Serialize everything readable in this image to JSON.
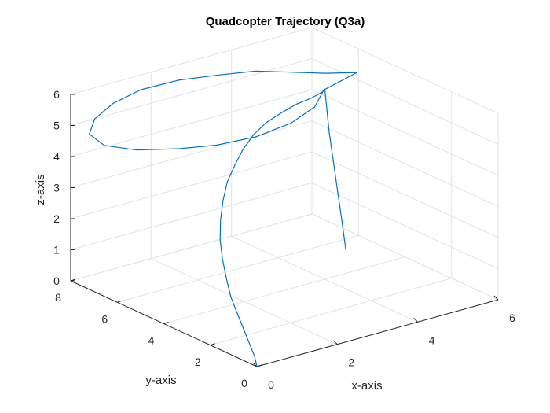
{
  "chart_data": {
    "type": "line",
    "projection": "3d",
    "title": "Quadcopter Trajectory (Q3a)",
    "xlabel": "x-axis",
    "ylabel": "y-axis",
    "zlabel": "z-axis",
    "xlim": [
      0,
      6
    ],
    "ylim": [
      0,
      8
    ],
    "zlim": [
      0,
      6
    ],
    "xticks": [
      0,
      2,
      4,
      6
    ],
    "yticks": [
      0,
      2,
      4,
      6,
      8
    ],
    "zticks": [
      0,
      1,
      2,
      3,
      4,
      5,
      6
    ],
    "grid": true,
    "box": false,
    "line_color": "#0072bd",
    "series": [
      {
        "segments": [
          {
            "part": "climb",
            "x": [
              0,
              0,
              0,
              0.03,
              0.1,
              0.22,
              0.4,
              0.62,
              0.88,
              1.18,
              1.5,
              1.84,
              2.2,
              2.55,
              2.9,
              3.25,
              3.58,
              3.9,
              4.2,
              4.5
            ],
            "y": [
              0,
              0.1,
              0.3,
              0.6,
              1.0,
              1.5,
              2.0,
              2.55,
              3.1,
              3.6,
              4.05,
              4.45,
              4.75,
              5.0,
              5.15,
              5.2,
              5.15,
              5.05,
              4.9,
              4.85
            ],
            "z": [
              0,
              0.3,
              0.6,
              0.95,
              1.3,
              1.65,
              2.0,
              2.35,
              2.7,
              3.05,
              3.4,
              3.75,
              4.05,
              4.35,
              4.65,
              4.9,
              5.1,
              5.3,
              5.45,
              5.6
            ]
          },
          {
            "part": "circle",
            "x": [
              4.5,
              5.5,
              5.3,
              5.0,
              4.6,
              4.0,
              3.2,
              2.3,
              1.4,
              0.6,
              0.0,
              -0.15,
              0.2,
              0.9,
              1.6,
              2.5,
              3.4,
              4.1,
              4.5
            ],
            "y": [
              4.9,
              5.2,
              6.2,
              7.2,
              8.0,
              8.55,
              8.9,
              8.95,
              8.6,
              8.0,
              7.2,
              6.3,
              5.5,
              4.9,
              4.5,
              4.35,
              4.4,
              4.6,
              4.9
            ],
            "z": [
              5.6,
              5.7,
              5.4,
              5.2,
              5.1,
              5.0,
              5.0,
              5.0,
              5.0,
              5.0,
              5.0,
              5.0,
              5.0,
              5.0,
              5.0,
              5.0,
              5.1,
              5.3,
              5.6
            ]
          },
          {
            "part": "descent",
            "x": [
              4.5,
              4.52,
              4.58,
              4.64,
              4.7
            ],
            "y": [
              4.85,
              4.7,
              4.55,
              4.4,
              4.3
            ],
            "z": [
              5.6,
              4.3,
              3.0,
              1.7,
              0.6
            ]
          }
        ]
      }
    ]
  }
}
